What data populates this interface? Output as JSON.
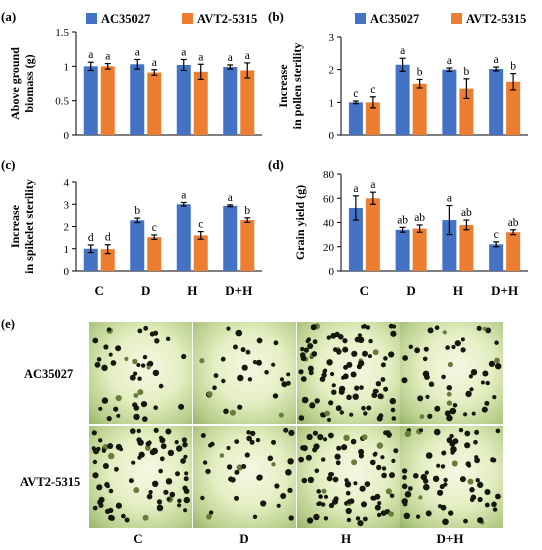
{
  "colors": {
    "AC35027": "#4472C4",
    "AVT2-5315": "#ED7D31"
  },
  "legend": [
    "AC35027",
    "AVT2-5315"
  ],
  "panel_e": {
    "label": "(e)",
    "rows": [
      "AC35027",
      "AVT2-5315"
    ],
    "columns": [
      "C",
      "D",
      "H",
      "D+H"
    ],
    "seed_counts": [
      [
        45,
        30,
        95,
        50
      ],
      [
        80,
        40,
        85,
        70
      ]
    ]
  },
  "chart_data": [
    {
      "panel": "(a)",
      "type": "bar",
      "categories": [
        "C",
        "D",
        "H",
        "D+H"
      ],
      "series": [
        {
          "name": "AC35027",
          "values": [
            1.0,
            1.03,
            1.02,
            0.99
          ],
          "errors": [
            0.06,
            0.07,
            0.08,
            0.03
          ],
          "letters": [
            "a",
            "a",
            "a",
            "a"
          ]
        },
        {
          "name": "AVT2-5315",
          "values": [
            1.0,
            0.91,
            0.92,
            0.94
          ],
          "errors": [
            0.04,
            0.04,
            0.11,
            0.11
          ],
          "letters": [
            "a",
            "a",
            "a",
            "a"
          ]
        }
      ],
      "ylabel": [
        "Above ground",
        "biomass (g)"
      ],
      "ylim": [
        0,
        1.5
      ],
      "yticks": [
        "0",
        "0.5",
        "1",
        "1.5"
      ],
      "show_legend": true,
      "show_xticks": false
    },
    {
      "panel": "(b)",
      "type": "bar",
      "categories": [
        "C",
        "D",
        "H",
        "D+H"
      ],
      "series": [
        {
          "name": "AC35027",
          "values": [
            1.0,
            2.15,
            2.0,
            2.02
          ],
          "errors": [
            0.04,
            0.2,
            0.05,
            0.06
          ],
          "letters": [
            "c",
            "a",
            "a",
            "a"
          ]
        },
        {
          "name": "AVT2-5315",
          "values": [
            1.0,
            1.57,
            1.42,
            1.63
          ],
          "errors": [
            0.17,
            0.13,
            0.3,
            0.25
          ],
          "letters": [
            "c",
            "b",
            "b",
            "b"
          ]
        }
      ],
      "ylabel": [
        "Increase",
        "in pollen sterility"
      ],
      "ylim": [
        0,
        3
      ],
      "yticks": [
        "0",
        "1",
        "2",
        "3"
      ],
      "show_legend": true,
      "show_xticks": false
    },
    {
      "panel": "(c)",
      "type": "bar",
      "categories": [
        "C",
        "D",
        "H",
        "D+H"
      ],
      "series": [
        {
          "name": "AC35027",
          "values": [
            1.0,
            2.28,
            3.0,
            2.93
          ],
          "errors": [
            0.17,
            0.1,
            0.08,
            0.04
          ],
          "letters": [
            "d",
            "b",
            "a",
            "a"
          ]
        },
        {
          "name": "AVT2-5315",
          "values": [
            0.98,
            1.52,
            1.6,
            2.29
          ],
          "errors": [
            0.2,
            0.1,
            0.17,
            0.1
          ],
          "letters": [
            "d",
            "c",
            "c",
            "b"
          ]
        }
      ],
      "ylabel": [
        "Increase",
        "in spikelet sterility"
      ],
      "ylim": [
        0,
        4
      ],
      "yticks": [
        "0",
        "1",
        "2",
        "3",
        "4"
      ],
      "show_legend": false,
      "show_xticks": true
    },
    {
      "panel": "(d)",
      "type": "bar",
      "categories": [
        "C",
        "D",
        "H",
        "D+H"
      ],
      "series": [
        {
          "name": "AC35027",
          "values": [
            52,
            34,
            42,
            22
          ],
          "errors": [
            10,
            2,
            12,
            2
          ],
          "letters": [
            "a",
            "ab",
            "a",
            "c"
          ]
        },
        {
          "name": "AVT2-5315",
          "values": [
            60,
            35,
            38,
            32
          ],
          "errors": [
            5,
            3,
            4,
            2
          ],
          "letters": [
            "a",
            "ab",
            "ab",
            "ab"
          ]
        }
      ],
      "ylabel": [
        "Grain yield (g)"
      ],
      "ylim": [
        0,
        80
      ],
      "yticks": [
        "0",
        "20",
        "40",
        "60",
        "80"
      ],
      "show_legend": false,
      "show_xticks": true
    }
  ]
}
